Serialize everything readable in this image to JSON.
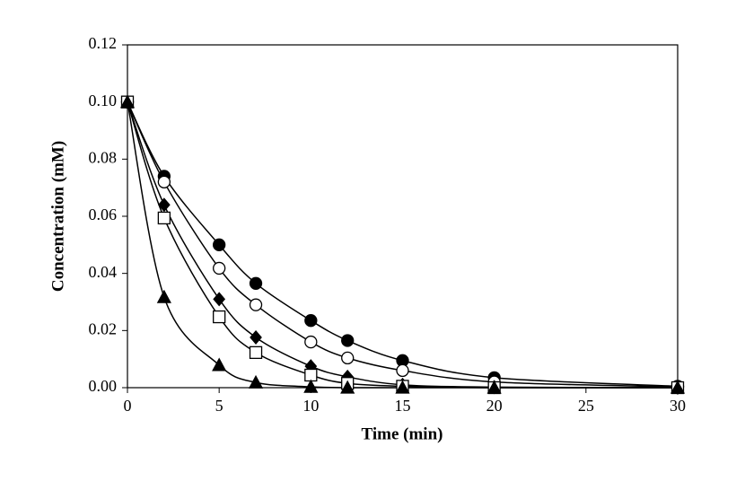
{
  "chart_data": {
    "type": "scatter-line",
    "x_label": "Time (min)",
    "y_label": "Concentration (mM)",
    "x": [
      0,
      2,
      5,
      7,
      10,
      12,
      15,
      20,
      30
    ],
    "series": [
      {
        "marker": "filled-circle",
        "color": "#000000",
        "values": [
          0.1,
          0.074,
          0.05,
          0.0365,
          0.0235,
          0.0165,
          0.0095,
          0.0035,
          0.0005
        ]
      },
      {
        "marker": "open-circle",
        "color": "#000000",
        "values": [
          0.1,
          0.072,
          0.0418,
          0.029,
          0.016,
          0.0104,
          0.006,
          0.002,
          0.0003
        ]
      },
      {
        "marker": "filled-diamond",
        "color": "#000000",
        "values": [
          0.1,
          0.064,
          0.031,
          0.0176,
          0.0075,
          0.0038,
          0.001,
          0.0002,
          0
        ]
      },
      {
        "marker": "open-square",
        "color": "#000000",
        "values": [
          0.1,
          0.0594,
          0.0248,
          0.0123,
          0.0044,
          0.0015,
          0.0005,
          0,
          0
        ]
      },
      {
        "marker": "filled-triangle",
        "color": "#000000",
        "values": [
          0.1,
          0.0317,
          0.0079,
          0.0018,
          0.0003,
          0,
          0,
          0,
          0
        ]
      }
    ],
    "xlim": [
      0,
      30
    ],
    "xticks": [
      0,
      5,
      10,
      15,
      20,
      25,
      30
    ],
    "ylim": [
      0,
      0.12
    ],
    "yticks": [
      {
        "value": 0,
        "label": "0.00"
      },
      {
        "value": 0.02,
        "label": "0.02"
      },
      {
        "value": 0.04,
        "label": "0.04"
      },
      {
        "value": 0.06,
        "label": "0.06"
      },
      {
        "value": 0.08,
        "label": "0.08"
      },
      {
        "value": 0.1,
        "label": "0.10"
      },
      {
        "value": 0.12,
        "label": "0.12"
      }
    ],
    "grid": false
  }
}
